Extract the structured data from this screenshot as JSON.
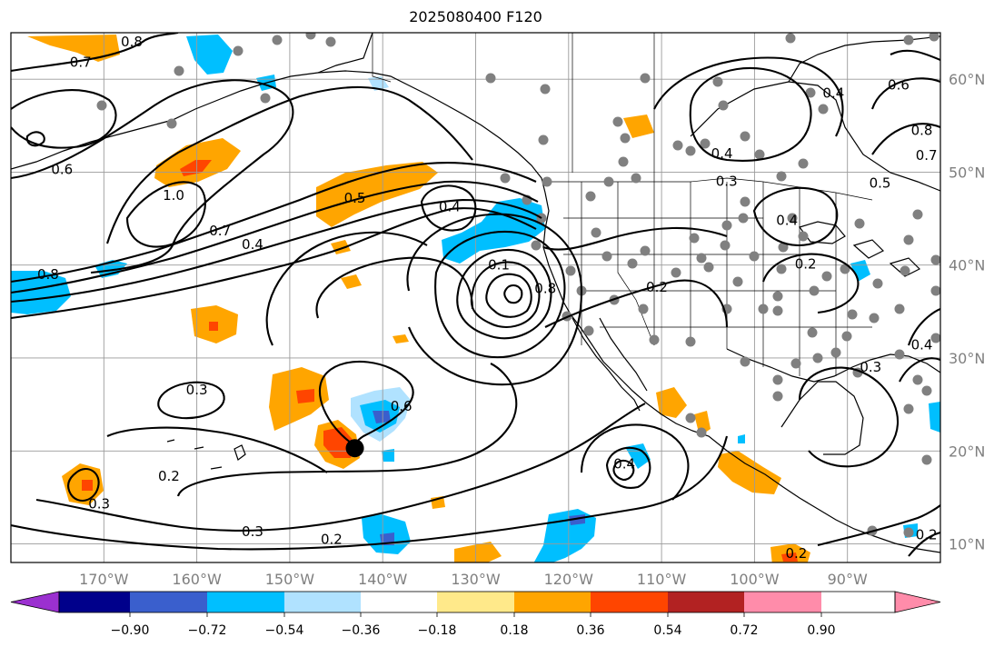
{
  "title": "2025080400 F120",
  "colors": {
    "coast": "#000000",
    "grid": "#9a9a9a",
    "station": "#808080",
    "contour": "#000000",
    "ocean": "#ffffff",
    "tick_label": "#7f7f7f"
  },
  "map": {
    "projection": "cylindrical",
    "lon_range": [
      -180,
      -80
    ],
    "lat_range": [
      8,
      65
    ],
    "lon_ticks": [
      "170°W",
      "160°W",
      "150°W",
      "140°W",
      "130°W",
      "120°W",
      "110°W",
      "100°W",
      "90°W"
    ],
    "lat_ticks": [
      "10°N",
      "20°N",
      "30°N",
      "40°N",
      "50°N",
      "60°N"
    ],
    "storm_marker": {
      "lon": -143,
      "lat": 20.3
    },
    "contour_labels": [
      {
        "text": "0.7",
        "lon": -172.5,
        "lat": 61.8
      },
      {
        "text": "0.8",
        "lon": -167,
        "lat": 64
      },
      {
        "text": "0.6",
        "lon": -174.5,
        "lat": 50.3
      },
      {
        "text": "1.0",
        "lon": -162.5,
        "lat": 47.5
      },
      {
        "text": "0.7",
        "lon": -157.5,
        "lat": 43.7
      },
      {
        "text": "0.4",
        "lon": -154,
        "lat": 42.2
      },
      {
        "text": "0.8",
        "lon": -176,
        "lat": 39
      },
      {
        "text": "0.5",
        "lon": -143,
        "lat": 47.2
      },
      {
        "text": "0.4",
        "lon": -132.8,
        "lat": 46.3
      },
      {
        "text": "0.1",
        "lon": -127.5,
        "lat": 40
      },
      {
        "text": "0.8",
        "lon": -122.5,
        "lat": 37.5
      },
      {
        "text": "0.6",
        "lon": -138,
        "lat": 24.8
      },
      {
        "text": "0.3",
        "lon": -160,
        "lat": 26.6
      },
      {
        "text": "0.2",
        "lon": -163,
        "lat": 17.3
      },
      {
        "text": "0.3",
        "lon": -170.5,
        "lat": 14.3
      },
      {
        "text": "0.3",
        "lon": -154,
        "lat": 11.3
      },
      {
        "text": "0.2",
        "lon": -145.5,
        "lat": 10.5
      },
      {
        "text": "0.4",
        "lon": -114,
        "lat": 18.6
      },
      {
        "text": "0.4",
        "lon": -103.5,
        "lat": 52
      },
      {
        "text": "0.3",
        "lon": -103,
        "lat": 49
      },
      {
        "text": "0.4",
        "lon": -96.5,
        "lat": 44.8
      },
      {
        "text": "0.2",
        "lon": -110.5,
        "lat": 37.6
      },
      {
        "text": "0.2",
        "lon": -94.5,
        "lat": 40.1
      },
      {
        "text": "0.4",
        "lon": -91.5,
        "lat": 58.5
      },
      {
        "text": "0.6",
        "lon": -84.5,
        "lat": 59.4
      },
      {
        "text": "0.8",
        "lon": -82,
        "lat": 54.5
      },
      {
        "text": "0.7",
        "lon": -81.5,
        "lat": 51.8
      },
      {
        "text": "0.5",
        "lon": -86.5,
        "lat": 48.8
      },
      {
        "text": "0.4",
        "lon": -82,
        "lat": 31.4
      },
      {
        "text": "0.3",
        "lon": -87.5,
        "lat": 29
      },
      {
        "text": "0.2",
        "lon": -95.5,
        "lat": 9
      },
      {
        "text": "0.2",
        "lon": -81.5,
        "lat": 11
      }
    ]
  },
  "colorbar": {
    "tick_labels": [
      "−0.90",
      "−0.72",
      "−0.54",
      "−0.36",
      "−0.18",
      "0.18",
      "0.36",
      "0.54",
      "0.72",
      "0.90"
    ],
    "colors": [
      "#9b30d0",
      "#00008b",
      "#3a5fcd",
      "#00bfff",
      "#b0e2ff",
      "#ffffff",
      "#ffe98a",
      "#ffa500",
      "#ff4500",
      "#b22222",
      "#ff8caa"
    ]
  }
}
